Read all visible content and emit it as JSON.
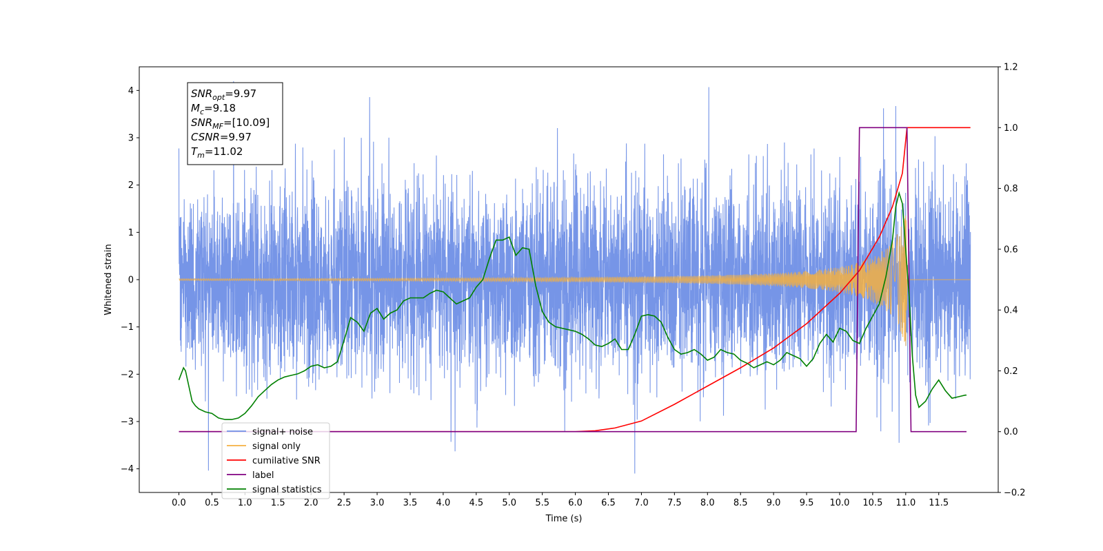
{
  "chart_data": {
    "type": "line",
    "xlabel": "Time (s)",
    "ylabel_left": "Whitened strain",
    "ylabel_right": "",
    "xlim": [
      -0.6,
      12.4
    ],
    "ylim_left": [
      -4.5,
      4.5
    ],
    "ylim_right": [
      -0.2,
      1.2
    ],
    "x_ticks": [
      0.0,
      0.5,
      1.0,
      1.5,
      2.0,
      2.5,
      3.0,
      3.5,
      4.0,
      4.5,
      5.0,
      5.5,
      6.0,
      6.5,
      7.0,
      7.5,
      8.0,
      8.5,
      9.0,
      9.5,
      10.0,
      10.5,
      11.0,
      11.5
    ],
    "x_tick_labels": [
      "0.0",
      "0.5",
      "1.0",
      "1.5",
      "2.0",
      "2.5",
      "3.0",
      "3.5",
      "4.0",
      "4.5",
      "5.0",
      "5.5",
      "6.0",
      "6.5",
      "7.0",
      "7.5",
      "8.0",
      "8.5",
      "9.0",
      "9.5",
      "10.0",
      "10.5",
      "11.0",
      "11.5"
    ],
    "y_ticks_left": [
      -4,
      -3,
      -2,
      -1,
      0,
      1,
      2,
      3,
      4
    ],
    "y_tick_labels_left": [
      "−4",
      "−3",
      "−2",
      "−1",
      "0",
      "1",
      "2",
      "3",
      "4"
    ],
    "y_ticks_right": [
      -0.2,
      0.0,
      0.2,
      0.4,
      0.6,
      0.8,
      1.0,
      1.2
    ],
    "y_tick_labels_right": [
      "−0.2",
      "0.0",
      "0.2",
      "0.4",
      "0.6",
      "0.8",
      "1.0",
      "1.2"
    ],
    "grid": false,
    "legend_position": "lower-left",
    "series": [
      {
        "name": "signal+ noise",
        "axis": "left",
        "color": "#6f8fe6",
        "kind": "noise",
        "t_start": 0.0,
        "t_end": 11.98,
        "noise_sigma": 1.0,
        "notable_peaks": [
          [
            8.02,
            4.07
          ],
          [
            10.85,
            3.67
          ],
          [
            6.9,
            -4.1
          ],
          [
            4.18,
            -3.63
          ],
          [
            10.9,
            -3.45
          ]
        ]
      },
      {
        "name": "signal only",
        "axis": "left",
        "color": "#f5b041",
        "kind": "chirp",
        "t_start": 0.0,
        "t_end": 11.98,
        "merger_time": 11.02,
        "peak_amplitude": 1.5
      },
      {
        "name": "cumilative SNR",
        "axis": "right",
        "color": "#ff0000",
        "x": [
          0.0,
          6.0,
          6.3,
          6.6,
          7.0,
          7.5,
          8.0,
          8.5,
          9.0,
          9.5,
          10.0,
          10.3,
          10.6,
          10.8,
          10.95,
          11.02,
          11.98
        ],
        "y": [
          0.0,
          0.0,
          0.003,
          0.012,
          0.035,
          0.09,
          0.15,
          0.21,
          0.275,
          0.355,
          0.455,
          0.53,
          0.64,
          0.74,
          0.85,
          1.0,
          1.0
        ]
      },
      {
        "name": "label",
        "axis": "right",
        "color": "#800080",
        "x": [
          0.0,
          10.25,
          10.3,
          11.02,
          11.08,
          11.92
        ],
        "y": [
          0.0,
          0.0,
          1.0,
          1.0,
          0.0,
          0.0
        ]
      },
      {
        "name": "signal statistics",
        "axis": "right",
        "color": "#008000",
        "x": [
          0.0,
          0.07,
          0.1,
          0.15,
          0.2,
          0.25,
          0.3,
          0.4,
          0.5,
          0.6,
          0.7,
          0.8,
          0.9,
          1.0,
          1.1,
          1.2,
          1.3,
          1.4,
          1.5,
          1.6,
          1.7,
          1.8,
          1.9,
          2.0,
          2.1,
          2.2,
          2.3,
          2.4,
          2.5,
          2.6,
          2.7,
          2.8,
          2.9,
          3.0,
          3.1,
          3.2,
          3.3,
          3.4,
          3.5,
          3.6,
          3.7,
          3.8,
          3.9,
          4.0,
          4.1,
          4.2,
          4.3,
          4.4,
          4.5,
          4.6,
          4.7,
          4.8,
          4.9,
          5.0,
          5.1,
          5.2,
          5.3,
          5.4,
          5.5,
          5.6,
          5.7,
          5.8,
          5.9,
          6.0,
          6.1,
          6.2,
          6.3,
          6.4,
          6.5,
          6.6,
          6.7,
          6.8,
          6.9,
          7.0,
          7.1,
          7.2,
          7.3,
          7.4,
          7.5,
          7.6,
          7.7,
          7.8,
          7.9,
          8.0,
          8.1,
          8.2,
          8.3,
          8.4,
          8.5,
          8.6,
          8.7,
          8.8,
          8.9,
          9.0,
          9.1,
          9.2,
          9.3,
          9.4,
          9.5,
          9.6,
          9.7,
          9.8,
          9.9,
          10.0,
          10.1,
          10.2,
          10.3,
          10.4,
          10.5,
          10.6,
          10.7,
          10.8,
          10.85,
          10.9,
          10.95,
          11.0,
          11.05,
          11.1,
          11.15,
          11.2,
          11.3,
          11.4,
          11.5,
          11.6,
          11.7,
          11.8,
          11.9,
          11.92
        ],
        "y": [
          0.17,
          0.21,
          0.2,
          0.15,
          0.1,
          0.085,
          0.075,
          0.065,
          0.06,
          0.045,
          0.04,
          0.04,
          0.045,
          0.06,
          0.085,
          0.115,
          0.135,
          0.155,
          0.17,
          0.18,
          0.185,
          0.19,
          0.2,
          0.215,
          0.22,
          0.21,
          0.215,
          0.23,
          0.3,
          0.375,
          0.36,
          0.33,
          0.39,
          0.405,
          0.37,
          0.39,
          0.4,
          0.43,
          0.44,
          0.44,
          0.44,
          0.455,
          0.465,
          0.46,
          0.44,
          0.42,
          0.43,
          0.44,
          0.475,
          0.5,
          0.57,
          0.63,
          0.63,
          0.64,
          0.58,
          0.605,
          0.6,
          0.48,
          0.395,
          0.36,
          0.345,
          0.34,
          0.335,
          0.33,
          0.32,
          0.305,
          0.285,
          0.28,
          0.29,
          0.305,
          0.27,
          0.27,
          0.32,
          0.38,
          0.385,
          0.38,
          0.36,
          0.31,
          0.27,
          0.255,
          0.26,
          0.27,
          0.255,
          0.235,
          0.245,
          0.27,
          0.26,
          0.255,
          0.235,
          0.225,
          0.21,
          0.22,
          0.23,
          0.22,
          0.235,
          0.26,
          0.25,
          0.24,
          0.215,
          0.24,
          0.29,
          0.32,
          0.295,
          0.34,
          0.33,
          0.3,
          0.29,
          0.34,
          0.38,
          0.42,
          0.51,
          0.63,
          0.74,
          0.785,
          0.75,
          0.6,
          0.45,
          0.25,
          0.12,
          0.08,
          0.1,
          0.14,
          0.17,
          0.135,
          0.11,
          0.115,
          0.12,
          0.12
        ]
      }
    ],
    "legend_entries": [
      {
        "label": "signal+ noise",
        "color": "#6f8fe6"
      },
      {
        "label": "signal only",
        "color": "#f5b041"
      },
      {
        "label": "cumilative SNR",
        "color": "#ff0000"
      },
      {
        "label": "label",
        "color": "#800080"
      },
      {
        "label": "signal statistics",
        "color": "#008000"
      }
    ],
    "annotation_lines": [
      {
        "base": "SNR",
        "sub": "opt",
        "value": "=9.97"
      },
      {
        "base": "M",
        "sub": "c",
        "value": "=9.18"
      },
      {
        "base": "SNR",
        "sub": "MF",
        "value": "=[10.09]"
      },
      {
        "base": "CSNR",
        "sub": "",
        "value": "=9.97"
      },
      {
        "base": "T",
        "sub": "m",
        "value": "=11.02"
      }
    ]
  }
}
